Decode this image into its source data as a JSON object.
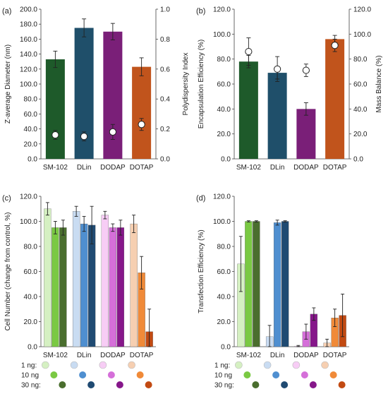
{
  "colors": {
    "SM-102": [
      "#d5f0c2",
      "#7ac943",
      "#4a6e2e"
    ],
    "DLin": [
      "#c9dcf2",
      "#4f8fd0",
      "#1f4a72"
    ],
    "DODAP": [
      "#f7cdf5",
      "#d56fd9",
      "#86178a"
    ],
    "DOTAP": [
      "#f6cfb1",
      "#f08a38",
      "#c24a12"
    ],
    "a_bars": [
      "#1e5a2a",
      "#1f4f6a",
      "#7a1f78",
      "#c1541c"
    ],
    "b_bars": [
      "#1e5a2a",
      "#1f4f6a",
      "#7a1f78",
      "#c1541c"
    ]
  },
  "legend": {
    "rows": [
      {
        "label": "1 ng:"
      },
      {
        "label": "10 ng"
      },
      {
        "label": "30 ng:"
      }
    ]
  },
  "chart_data": [
    {
      "panel_label": "(a)",
      "type": "bar",
      "categories": [
        "SM-102",
        "DLin",
        "DODAP",
        "DOTAP"
      ],
      "ylabel": "Z-average Diameter (nm)",
      "ylim": [
        0,
        200
      ],
      "yticks": [
        "0.0",
        "20.0",
        "40.0",
        "60.0",
        "80.0",
        "100.0",
        "120.0",
        "140.0",
        "160.0",
        "180.0",
        "200.0"
      ],
      "values": [
        133,
        175,
        170,
        123
      ],
      "errors": [
        11,
        12,
        11,
        12
      ],
      "y2label": "Polydispersity Index",
      "y2lim": [
        0,
        1
      ],
      "y2ticks": [
        "0.0",
        "0.2",
        "0.4",
        "0.6",
        "0.8",
        "1.0"
      ],
      "points": [
        0.16,
        0.15,
        0.18,
        0.23
      ],
      "point_errors": [
        0.03,
        0.03,
        0.05,
        0.04
      ]
    },
    {
      "panel_label": "(b)",
      "type": "bar",
      "categories": [
        "SM-102",
        "DLin",
        "DODAP",
        "DOTAP"
      ],
      "ylabel": "Encapsulation Efficiency (%)",
      "ylim": [
        0,
        120
      ],
      "yticks": [
        "0.0",
        "20.0",
        "40.0",
        "60.0",
        "80.0",
        "100.0",
        "120.0"
      ],
      "values": [
        78,
        69,
        40,
        96
      ],
      "errors": [
        5,
        5,
        5,
        3
      ],
      "y2label": "Mass Balance (%)",
      "y2lim": [
        0,
        120
      ],
      "y2ticks": [
        "0.0",
        "20.0",
        "40.0",
        "60.0",
        "80.0",
        "100.0",
        "120.0"
      ],
      "points": [
        86,
        72,
        71,
        91
      ],
      "point_errors": [
        11,
        10,
        5,
        5
      ]
    },
    {
      "panel_label": "(c)",
      "type": "bar",
      "categories": [
        "SM-102",
        "DLin",
        "DODAP",
        "DOTAP"
      ],
      "ylabel": "Cell Number (change from control, %)",
      "ylim": [
        0,
        120
      ],
      "yticks": [
        "0.0",
        "20.0",
        "40.0",
        "60.0",
        "80.0",
        "100.0",
        "120.0"
      ],
      "series": [
        {
          "name": "1 ng",
          "values": [
            110,
            108,
            105,
            98
          ],
          "errors": [
            5,
            4,
            3,
            7
          ]
        },
        {
          "name": "10 ng",
          "values": [
            95,
            98,
            95,
            59
          ],
          "errors": [
            5,
            6,
            3,
            13
          ]
        },
        {
          "name": "30 ng",
          "values": [
            95,
            97,
            95,
            12
          ],
          "errors": [
            6,
            15,
            6,
            18
          ]
        }
      ]
    },
    {
      "panel_label": "(d)",
      "type": "bar",
      "categories": [
        "SM-102",
        "DLin",
        "DODAP",
        "DOTAP"
      ],
      "ylabel": "Transfection Efficiency (%)",
      "ylim": [
        0,
        120
      ],
      "yticks": [
        "0.0",
        "20.0",
        "40.0",
        "60.0",
        "80.0",
        "100.0",
        "120.0"
      ],
      "series": [
        {
          "name": "1 ng",
          "values": [
            66,
            8,
            0.5,
            3
          ],
          "errors": [
            22,
            9,
            0.5,
            3
          ]
        },
        {
          "name": "10 ng",
          "values": [
            100,
            99,
            12,
            23
          ],
          "errors": [
            0.5,
            2,
            6,
            7
          ]
        },
        {
          "name": "30 ng",
          "values": [
            100,
            100,
            26,
            25
          ],
          "errors": [
            0.5,
            0.5,
            5,
            17
          ]
        }
      ]
    }
  ]
}
